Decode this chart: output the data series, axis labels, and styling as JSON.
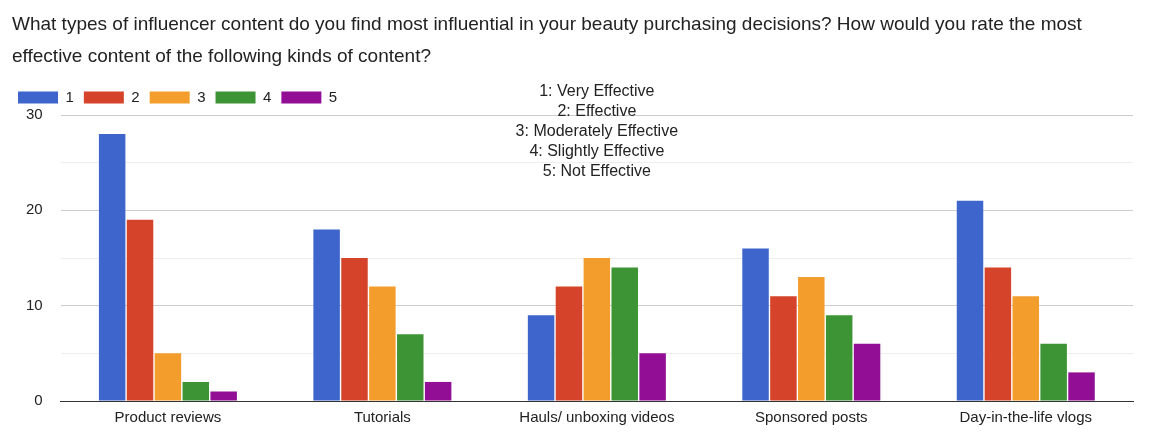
{
  "chart_data": {
    "type": "bar",
    "title": "What types of influencer content do you find most influential in your beauty purchasing decisions? How would you rate the most effective content of the following kinds of content?",
    "annotations": [
      "1: Very Effective",
      "2: Effective",
      "3: Moderately Effective",
      "4: Slightly Effective",
      "5: Not Effective"
    ],
    "categories": [
      "Product reviews",
      "Tutorials",
      "Hauls/ unboxing videos",
      "Sponsored posts",
      "Day-in-the-life vlogs"
    ],
    "series": [
      {
        "name": "1",
        "color": "#3d65cc",
        "values": [
          28,
          18,
          9,
          16,
          21
        ]
      },
      {
        "name": "2",
        "color": "#d5442a",
        "values": [
          19,
          15,
          12,
          11,
          14
        ]
      },
      {
        "name": "3",
        "color": "#f39d2c",
        "values": [
          5,
          12,
          15,
          13,
          11
        ]
      },
      {
        "name": "4",
        "color": "#3d9434",
        "values": [
          2,
          7,
          14,
          9,
          6
        ]
      },
      {
        "name": "5",
        "color": "#920f95",
        "values": [
          1,
          2,
          5,
          6,
          3
        ]
      }
    ],
    "ylim": [
      0,
      30
    ],
    "yticks": [
      0,
      {
        "value": 5,
        "label": null
      },
      10,
      {
        "value": 15,
        "label": null
      },
      20,
      {
        "value": 25,
        "label": null
      },
      30
    ],
    "grid": "y",
    "legend": "top left"
  }
}
